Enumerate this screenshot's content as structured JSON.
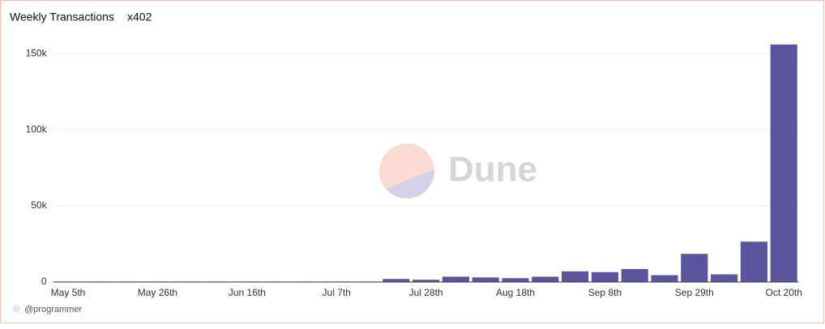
{
  "chart_data": {
    "type": "bar",
    "title": "Weekly Transactions",
    "subtitle": "x402",
    "categories": [
      "May 5th",
      null,
      null,
      "May 26th",
      null,
      null,
      "Jun 16th",
      null,
      null,
      "Jul 7th",
      null,
      null,
      "Jul 28th",
      null,
      null,
      "Aug 18th",
      null,
      null,
      "Sep 8th",
      null,
      null,
      "Sep 29th",
      null,
      null,
      "Oct 20th"
    ],
    "values": [
      300,
      300,
      300,
      300,
      300,
      300,
      300,
      300,
      300,
      300,
      300,
      2000,
      1500,
      3500,
      3000,
      2500,
      3500,
      7000,
      6500,
      8500,
      4500,
      18500,
      5000,
      26500,
      156000
    ],
    "color": "#5a559d",
    "ylim": [
      0,
      165000
    ],
    "yticks": [
      0,
      {
        "value": 50000,
        "label": "50k"
      },
      {
        "value": 100000,
        "label": "100k"
      },
      {
        "value": 150000,
        "label": "150k"
      }
    ],
    "grid": true,
    "watermark": "Dune",
    "footer": "@programmer"
  }
}
